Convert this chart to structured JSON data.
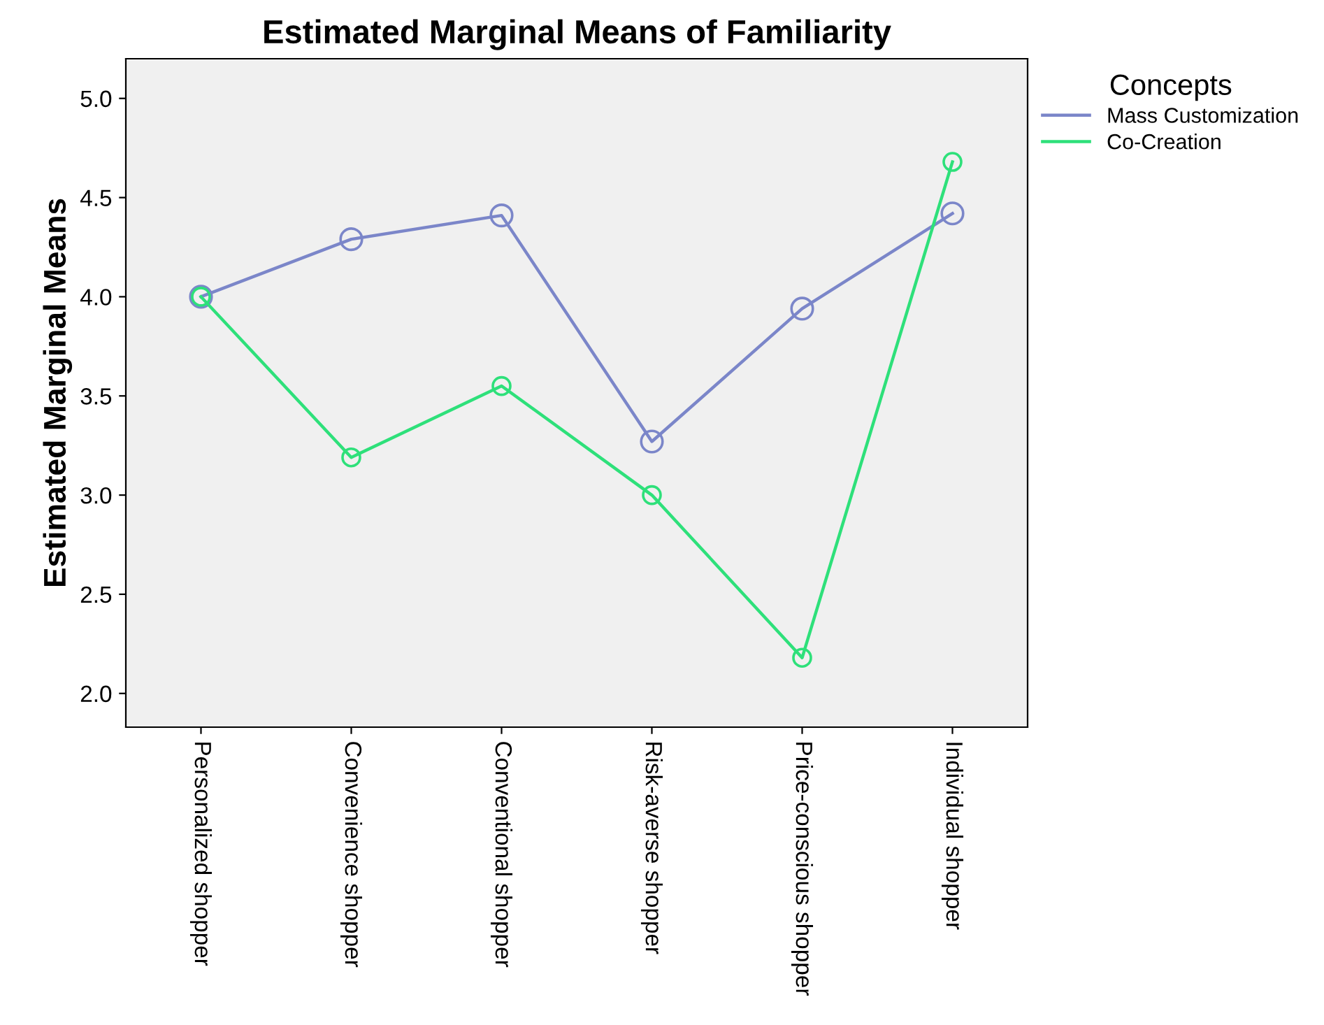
{
  "chart_data": {
    "type": "line",
    "title": "Estimated Marginal Means of Familiarity",
    "ylabel": "Estimated Marginal Means",
    "legend_title": "Concepts",
    "categories": [
      "Personalized shopper",
      "Convenience shopper",
      "Conventional shopper",
      "Risk-averse shopper",
      "Price-conscious shopper",
      "Individual shopper"
    ],
    "series": [
      {
        "name": "Mass Customization",
        "color": "#7b86c9",
        "values": [
          4.0,
          4.29,
          4.41,
          3.27,
          3.94,
          4.42
        ]
      },
      {
        "name": "Co-Creation",
        "color": "#2ee07a",
        "values": [
          4.0,
          3.19,
          3.55,
          3.0,
          2.18,
          4.68
        ]
      }
    ],
    "ylim": [
      1.83,
      5.2
    ],
    "yticks": [
      {
        "value": 2,
        "label": "2.0"
      },
      2.5,
      {
        "value": 3,
        "label": "3.0"
      },
      3.5,
      {
        "value": 4,
        "label": "4.0"
      },
      4.5,
      {
        "value": 5,
        "label": "5.0"
      }
    ],
    "grid": false,
    "legend": "top right",
    "marker": "circle",
    "line_style": "solid"
  }
}
